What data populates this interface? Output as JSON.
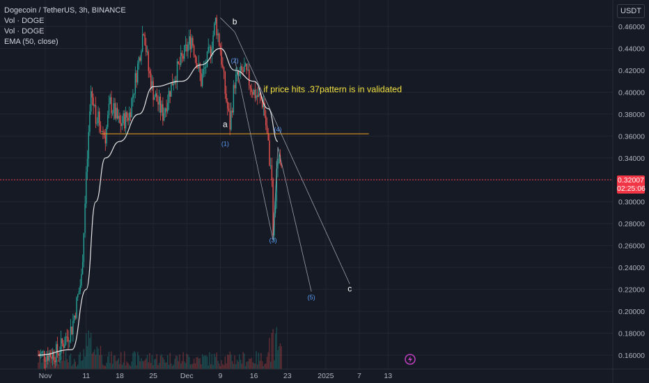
{
  "legend": {
    "symbol_line": "Dogecoin / TetherUS, 3h, BINANCE",
    "indicators": [
      "Vol · DOGE",
      "Vol · DOGE",
      "EMA (50, close)"
    ]
  },
  "toolbar": {
    "currency_label": "USDT"
  },
  "last_price": {
    "value": "0.32007",
    "countdown": "02:25:06"
  },
  "colors": {
    "up": "#26a69a",
    "down": "#ef5350",
    "ema": "#e8e8e8",
    "level": "#f5a623",
    "annotation": "#f0e040",
    "wave_label": "#5b9cf5",
    "grid": "#232733"
  },
  "chart_data": {
    "type": "candlestick",
    "symbol": "Dogecoin / TetherUS",
    "timeframe": "3h",
    "exchange": "BINANCE",
    "y_ticks": [
      "0.46000",
      "0.44000",
      "0.42000",
      "0.40000",
      "0.38000",
      "0.36000",
      "0.34000",
      "0.32000",
      "0.30000",
      "0.28000",
      "0.26000",
      "0.24000",
      "0.22000",
      "0.20000",
      "0.18000",
      "0.16000"
    ],
    "y_tick_values": [
      0.46,
      0.44,
      0.42,
      0.4,
      0.38,
      0.36,
      0.34,
      0.32,
      0.3,
      0.28,
      0.26,
      0.24,
      0.22,
      0.2,
      0.18,
      0.16
    ],
    "x_ticks": [
      "Nov",
      "11",
      "18",
      "25",
      "Dec",
      "9",
      "16",
      "23",
      "2025",
      "7",
      "13"
    ],
    "price_path": [
      [
        "Nov 1",
        0.16
      ],
      [
        "Nov 5",
        0.162
      ],
      [
        "Nov 8",
        0.185
      ],
      [
        "Nov 10",
        0.23
      ],
      [
        "Nov 11",
        0.32
      ],
      [
        "Nov 12",
        0.4
      ],
      [
        "Nov 13",
        0.38
      ],
      [
        "Nov 15",
        0.36
      ],
      [
        "Nov 16",
        0.39
      ],
      [
        "Nov 18",
        0.37
      ],
      [
        "Nov 20",
        0.38
      ],
      [
        "Nov 22",
        0.43
      ],
      [
        "Nov 23",
        0.46
      ],
      [
        "Nov 24",
        0.42
      ],
      [
        "Nov 25",
        0.4
      ],
      [
        "Nov 27",
        0.38
      ],
      [
        "Nov 29",
        0.41
      ],
      [
        "Dec 1",
        0.43
      ],
      [
        "Dec 3",
        0.45
      ],
      [
        "Dec 5",
        0.41
      ],
      [
        "Dec 7",
        0.44
      ],
      [
        "Dec 8",
        0.465
      ],
      [
        "Dec 9",
        0.44
      ],
      [
        "Dec 10",
        0.4
      ],
      [
        "Dec 11",
        0.37
      ],
      [
        "Dec 12",
        0.41
      ],
      [
        "Dec 14",
        0.42
      ],
      [
        "Dec 16",
        0.4
      ],
      [
        "Dec 18",
        0.39
      ],
      [
        "Dec 19",
        0.35
      ],
      [
        "Dec 20",
        0.3
      ],
      [
        "Dec 20",
        0.27
      ],
      [
        "Dec 21",
        0.34
      ],
      [
        "Dec 22",
        0.32
      ]
    ],
    "ema_path": [
      [
        "Nov 1",
        0.16
      ],
      [
        "Nov 8",
        0.165
      ],
      [
        "Nov 11",
        0.22
      ],
      [
        "Nov 13",
        0.3
      ],
      [
        "Nov 15",
        0.34
      ],
      [
        "Nov 18",
        0.355
      ],
      [
        "Nov 22",
        0.38
      ],
      [
        "Nov 25",
        0.405
      ],
      [
        "Dec 1",
        0.41
      ],
      [
        "Dec 5",
        0.425
      ],
      [
        "Dec 9",
        0.44
      ],
      [
        "Dec 12",
        0.42
      ],
      [
        "Dec 16",
        0.41
      ],
      [
        "Dec 19",
        0.385
      ],
      [
        "Dec 21",
        0.355
      ]
    ],
    "horizontal_level": 0.362,
    "last_price": 0.32007,
    "annotations": [
      {
        "text": "if price hits .37pattern is in validated",
        "date": "Dec 18",
        "price": 0.4
      },
      {
        "text": "a",
        "date": "Dec 10",
        "price": 0.368
      },
      {
        "text": "b",
        "date": "Dec 12",
        "price": 0.462
      },
      {
        "text": "c",
        "date": "Jan 5",
        "price": 0.218
      },
      {
        "text": "(1)",
        "date": "Dec 10",
        "price": 0.351
      },
      {
        "text": "(2)",
        "date": "Dec 12",
        "price": 0.427
      },
      {
        "text": "(3)",
        "date": "Dec 20",
        "price": 0.263
      },
      {
        "text": "(4)",
        "date": "Dec 21",
        "price": 0.364
      },
      {
        "text": "(5)",
        "date": "Dec 28",
        "price": 0.211
      }
    ]
  }
}
